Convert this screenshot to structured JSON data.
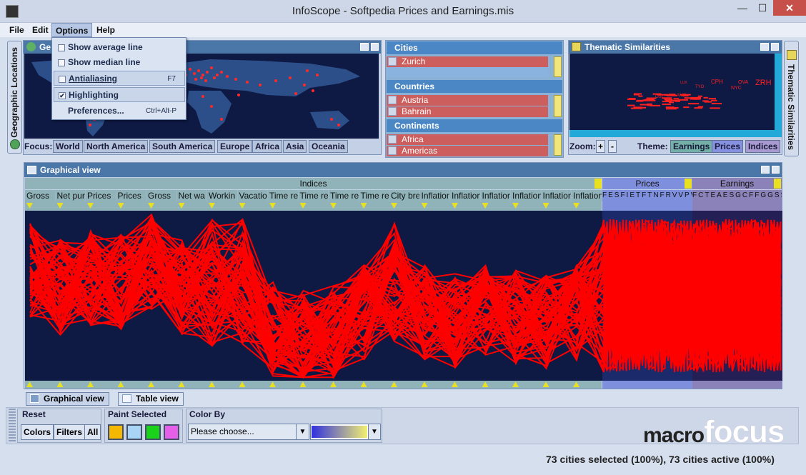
{
  "window": {
    "title": "InfoScope - Softpedia Prices and Earnings.mis",
    "minimize": "—",
    "maximize": "☐",
    "close": "✕"
  },
  "menu": {
    "items": [
      "File",
      "Edit",
      "Options",
      "Help"
    ]
  },
  "options_menu": {
    "show_average": "Show average line",
    "show_median": "Show median line",
    "antialiasing": "Antialiasing",
    "antialiasing_accel": "F7",
    "highlighting": "Highlighting",
    "preferences": "Preferences...",
    "preferences_accel": "Ctrl+Alt-P",
    "highlighting_checked": true
  },
  "left_tab": {
    "label": "Geographic Locations"
  },
  "right_tab": {
    "label": "Thematic Similarities"
  },
  "geo": {
    "title": "Ge",
    "focus_label": "Focus:",
    "focus_options": [
      "World",
      "North America",
      "South America",
      "Europe",
      "Africa",
      "Asia",
      "Oceania"
    ]
  },
  "filters": {
    "cities": {
      "title": "Cities",
      "items": [
        "Zurich"
      ]
    },
    "countries": {
      "title": "Countries",
      "items": [
        "Austria",
        "Bahrain"
      ]
    },
    "continents": {
      "title": "Continents",
      "items": [
        "Africa",
        "Americas"
      ]
    }
  },
  "thematic": {
    "title": "Thematic Similarities",
    "zoom_label": "Zoom:",
    "zoom_in": "+",
    "zoom_out": "-",
    "theme_label": "Theme:",
    "themes": [
      "Earnings",
      "Prices",
      "Indices"
    ],
    "labels": [
      "ZRH",
      "CPH",
      "NYC",
      "OVA",
      "LUX",
      "TYO",
      "AMS",
      "OSL"
    ]
  },
  "graphical_view": {
    "title": "Graphical view",
    "groups": [
      "Indices",
      "Prices",
      "Earnings"
    ],
    "columns": [
      "Gross",
      "Net pur",
      "Prices",
      "Prices",
      "Gross",
      "Net wa",
      "Workin",
      "Vacatio",
      "Time re",
      "Time re",
      "Time re",
      "Time re",
      "City bre",
      "Inflation",
      "Inflation",
      "Inflation",
      "Inflation",
      "Inflation",
      "Inflation"
    ],
    "prices_short": "FESFIETFTNFRVVPVMFL",
    "earnings_short": "FCTEAESGCFFGGSSSSF"
  },
  "view_tabs": {
    "graphical": "Graphical view",
    "table": "Table view"
  },
  "toolbar": {
    "reset_title": "Reset",
    "reset_buttons": [
      "Colors",
      "Filters",
      "All"
    ],
    "paint_title": "Paint Selected",
    "paint_colors": [
      "#f5b800",
      "#aad4f5",
      "#19d219",
      "#e55fe8"
    ],
    "colorby_title": "Color By",
    "colorby_placeholder": "Please choose...",
    "gradient_start": "#3030e0",
    "gradient_end": "#f3f070"
  },
  "brand": {
    "macro": "macro",
    "focus": "focus"
  },
  "status": {
    "text": "73 cities selected (100%), 73 cities active (100%)"
  },
  "colors": {
    "line": "#ff0000",
    "plot_bg": "#0e1a44",
    "header_blue": "#4a76a8",
    "indices_band": "#8fb3b8",
    "prices_band": "#7d8fdd",
    "earnings_band": "#8a82b8"
  }
}
